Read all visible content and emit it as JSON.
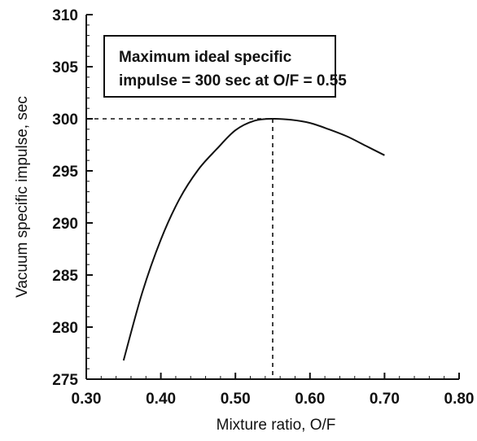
{
  "chart_data": {
    "type": "line",
    "title": "",
    "xlabel": "Mixture ratio, O/F",
    "ylabel": "Vacuum specific impulse, sec",
    "xlim": [
      0.3,
      0.8
    ],
    "ylim": [
      275,
      310
    ],
    "x_ticks": [
      0.3,
      0.4,
      0.5,
      0.6,
      0.7,
      0.8
    ],
    "x_tick_labels": [
      "0.30",
      "0.40",
      "0.50",
      "0.60",
      "0.70",
      "0.80"
    ],
    "y_ticks": [
      275,
      280,
      285,
      290,
      295,
      300,
      305,
      310
    ],
    "y_tick_labels": [
      "275",
      "280",
      "285",
      "290",
      "295",
      "300",
      "305",
      "310"
    ],
    "grid": false,
    "legend": "none",
    "series": [
      {
        "x": [
          0.35,
          0.375,
          0.4,
          0.425,
          0.45,
          0.475,
          0.5,
          0.525,
          0.55,
          0.575,
          0.6,
          0.625,
          0.65,
          0.675,
          0.7
        ],
        "y": [
          276.8,
          283.3,
          288.4,
          292.3,
          295.1,
          297.1,
          298.9,
          299.8,
          300.0,
          299.9,
          299.6,
          299.0,
          298.3,
          297.4,
          296.5
        ]
      }
    ],
    "reference_point": {
      "x": 0.55,
      "y": 300
    },
    "annotations": [
      {
        "lines": [
          "Maximum ideal specific",
          "impulse = 300 sec at O/F = 0.55"
        ]
      }
    ],
    "colors": {
      "line": "#111111",
      "axis": "#111111",
      "guide": "#111111",
      "background": "#ffffff"
    }
  }
}
